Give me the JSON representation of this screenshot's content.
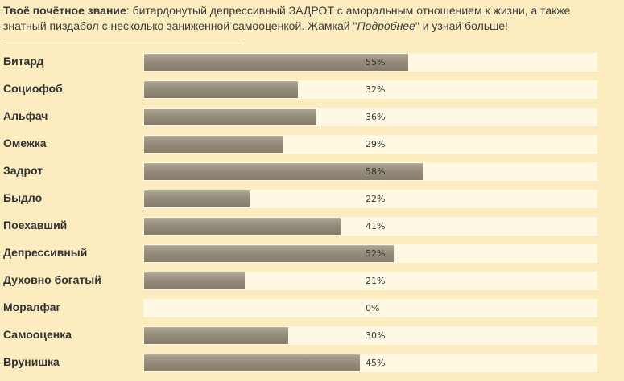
{
  "result": {
    "title": "Твоё почётное звание",
    "colon": ":",
    "desc_before_link": " битардонутый депрессивный ЗАДРОТ с аморальным отношением к жизни, а также знатный пиздабол с несколько заниженной самооценкой. Жамкай \"",
    "link_text": "Подробнее",
    "desc_after_link": "\" и узнай больше!"
  },
  "rows": [
    {
      "label": "Битард",
      "percent_text": "55%",
      "value": 55
    },
    {
      "label": "Социофоб",
      "percent_text": "32%",
      "value": 32
    },
    {
      "label": "Альфач",
      "percent_text": "36%",
      "value": 36
    },
    {
      "label": "Омежка",
      "percent_text": "29%",
      "value": 29
    },
    {
      "label": "Задрот",
      "percent_text": "58%",
      "value": 58
    },
    {
      "label": "Быдло",
      "percent_text": "22%",
      "value": 22
    },
    {
      "label": "Поехавший",
      "percent_text": "41%",
      "value": 41
    },
    {
      "label": "Депрессивный",
      "percent_text": "52%",
      "value": 52
    },
    {
      "label": "Духовно богатый",
      "percent_text": "21%",
      "value": 21
    },
    {
      "label": "Моралфаг",
      "percent_text": "0%",
      "value": 0
    },
    {
      "label": "Самооценка",
      "percent_text": "30%",
      "value": 30
    },
    {
      "label": "Врунишка",
      "percent_text": "45%",
      "value": 45
    }
  ],
  "colors": {
    "background": "#fdecc0",
    "track": "#fff8e3",
    "bar_fill": "#938a78"
  }
}
